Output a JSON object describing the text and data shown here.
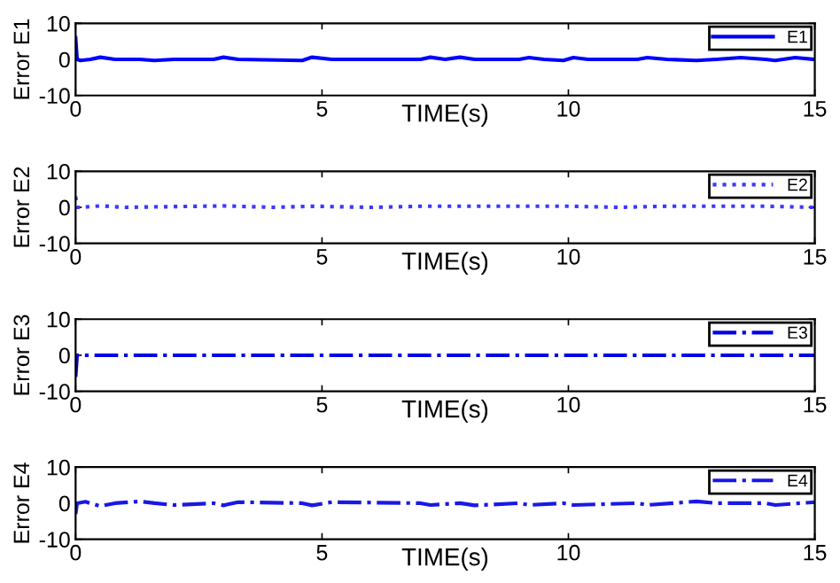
{
  "chart_data": [
    {
      "type": "line",
      "xlabel": "TIME(s)",
      "ylabel": "Error E1",
      "x": [
        0,
        0.03,
        0.1,
        0.3,
        0.5,
        0.8,
        1.3,
        1.6,
        2.0,
        2.8,
        3.0,
        3.3,
        4.6,
        4.8,
        5.2,
        7.0,
        7.2,
        7.5,
        7.8,
        8.1,
        9.0,
        9.2,
        9.5,
        9.9,
        10.1,
        10.4,
        11.4,
        11.6,
        12.0,
        12.6,
        13.0,
        13.5,
        14.0,
        14.2,
        14.6,
        15
      ],
      "series": [
        {
          "name": "E1",
          "color": "#0000ff",
          "line_style": "solid",
          "values": [
            6,
            0,
            -0.3,
            0,
            0.6,
            0,
            0,
            -0.3,
            0,
            0,
            0.6,
            0,
            -0.3,
            0.6,
            0,
            0,
            0.6,
            0,
            0.6,
            0,
            0,
            0.5,
            0,
            -0.3,
            0.5,
            0,
            0,
            0.5,
            0,
            -0.3,
            0,
            0.5,
            0,
            -0.3,
            0.5,
            0
          ]
        }
      ],
      "xlim": [
        0,
        15
      ],
      "xticks": [
        0,
        5,
        10,
        15
      ],
      "ylim": [
        -10,
        10
      ],
      "yticks": [
        -10,
        0,
        10
      ],
      "legend": "top right",
      "grid": false
    },
    {
      "type": "line",
      "xlabel": "TIME(s)",
      "ylabel": "Error E2",
      "x": [
        0,
        0.03,
        0.1,
        0.5,
        1.0,
        2.0,
        3.0,
        4.0,
        4.8,
        6.0,
        7.0,
        7.8,
        9.0,
        10.0,
        11.0,
        12.0,
        13.0,
        14.0,
        15
      ],
      "series": [
        {
          "name": "E2",
          "color": "#3a3aff",
          "line_style": "dotted",
          "values": [
            3,
            0,
            0,
            0.4,
            0,
            0.2,
            0.4,
            0,
            0.3,
            0,
            0.3,
            0.3,
            0.3,
            0.3,
            0,
            0.3,
            0.3,
            0.3,
            0
          ]
        }
      ],
      "xlim": [
        0,
        15
      ],
      "xticks": [
        0,
        5,
        10,
        15
      ],
      "ylim": [
        -10,
        10
      ],
      "yticks": [
        -10,
        0,
        10
      ],
      "legend": "top right",
      "grid": false
    },
    {
      "type": "line",
      "xlabel": "TIME(s)",
      "ylabel": "Error E3",
      "x": [
        0,
        0.03,
        0.1,
        15
      ],
      "series": [
        {
          "name": "E3",
          "color": "#0000e6",
          "line_style": "dashdot",
          "values": [
            -6,
            0,
            0,
            0
          ]
        }
      ],
      "xlim": [
        0,
        15
      ],
      "xticks": [
        0,
        5,
        10,
        15
      ],
      "ylim": [
        -10,
        10
      ],
      "yticks": [
        -10,
        0,
        10
      ],
      "legend": "top right",
      "grid": false
    },
    {
      "type": "line",
      "xlabel": "TIME(s)",
      "ylabel": "Error E4",
      "x": [
        0,
        0.03,
        0.2,
        0.5,
        0.8,
        1.3,
        1.6,
        2.0,
        2.8,
        3.0,
        3.3,
        4.6,
        4.8,
        5.2,
        7.0,
        7.2,
        7.8,
        8.1,
        9.0,
        9.2,
        9.9,
        10.1,
        11.4,
        11.6,
        12.6,
        13.0,
        14.0,
        14.2,
        15
      ],
      "series": [
        {
          "name": "E4",
          "color": "#1818e8",
          "line_style": "dashdot",
          "values": [
            -3,
            0,
            0.4,
            -0.8,
            0,
            0.5,
            0,
            -0.5,
            0,
            -0.6,
            0.3,
            0,
            -0.6,
            0.3,
            0,
            -0.5,
            0,
            -0.6,
            0,
            -0.5,
            0,
            -0.5,
            0,
            -0.5,
            0.5,
            0,
            0,
            -0.5,
            0.3
          ]
        }
      ],
      "xlim": [
        0,
        15
      ],
      "xticks": [
        0,
        5,
        10,
        15
      ],
      "ylim": [
        -10,
        10
      ],
      "yticks": [
        -10,
        0,
        10
      ],
      "legend": "top right",
      "grid": false
    }
  ]
}
